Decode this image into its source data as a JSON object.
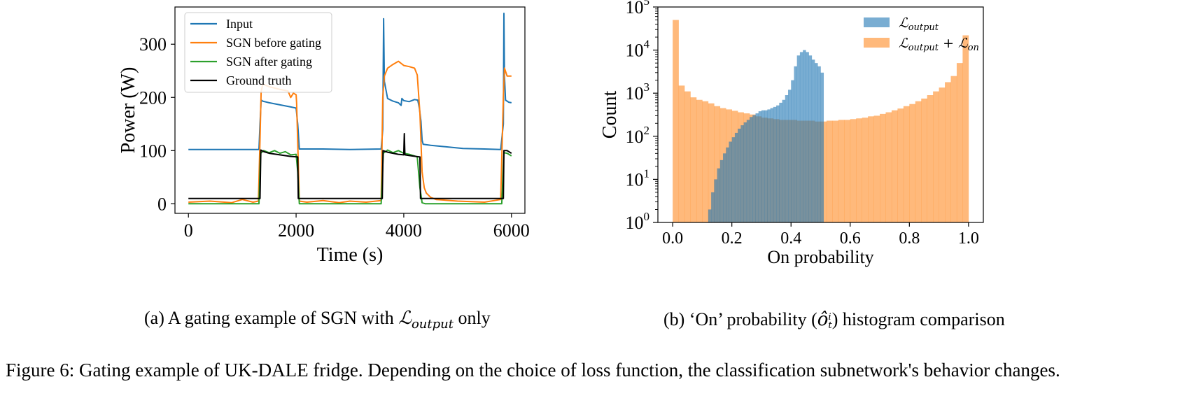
{
  "figure": {
    "caption": "Figure 6: Gating example of UK-DALE fridge. Depending on the choice of loss function, the classification subnetwork's behavior changes."
  },
  "subfigures": {
    "a": {
      "caption_prefix": "(a) A gating example of SGN with ",
      "caption_math": "ℒ",
      "caption_math_sub": "output",
      "caption_suffix": " only"
    },
    "b": {
      "caption_prefix": "(b) ‘On’ probability (",
      "caption_math": "ô",
      "caption_math_sub": "t",
      "caption_math_sup": "i",
      "caption_suffix": ") histogram comparison"
    }
  },
  "chart_data": [
    {
      "type": "line",
      "xlabel": "Time (s)",
      "ylabel": "Power (W)",
      "xlim": [
        -250,
        6250
      ],
      "ylim": [
        -18,
        370
      ],
      "xticks": [
        0,
        2000,
        4000,
        6000
      ],
      "yticks": [
        0,
        100,
        200,
        300
      ],
      "grid": false,
      "legend_position": "upper-left",
      "series": [
        {
          "name": "Input",
          "color": "#1f77b4",
          "points": [
            [
              0,
              102
            ],
            [
              1310,
              102
            ],
            [
              1330,
              150
            ],
            [
              1350,
              195
            ],
            [
              1380,
              193
            ],
            [
              1500,
              190
            ],
            [
              1700,
              186
            ],
            [
              1900,
              182
            ],
            [
              2000,
              180
            ],
            [
              2030,
              150
            ],
            [
              2060,
              103
            ],
            [
              2500,
              103
            ],
            [
              3000,
              102
            ],
            [
              3580,
              103
            ],
            [
              3610,
              140
            ],
            [
              3625,
              348
            ],
            [
              3640,
              230
            ],
            [
              3700,
              198
            ],
            [
              3800,
              193
            ],
            [
              3900,
              190
            ],
            [
              3950,
              185
            ],
            [
              3965,
              198
            ],
            [
              4000,
              194
            ],
            [
              4100,
              192
            ],
            [
              4200,
              196
            ],
            [
              4260,
              195
            ],
            [
              4290,
              180
            ],
            [
              4320,
              155
            ],
            [
              4340,
              120
            ],
            [
              4360,
              112
            ],
            [
              4500,
              110
            ],
            [
              4700,
              108
            ],
            [
              4900,
              106
            ],
            [
              5100,
              104
            ],
            [
              5500,
              103
            ],
            [
              5800,
              102
            ],
            [
              5850,
              150
            ],
            [
              5860,
              358
            ],
            [
              5870,
              240
            ],
            [
              5890,
              195
            ],
            [
              5950,
              191
            ],
            [
              6000,
              190
            ]
          ]
        },
        {
          "name": "SGN before gating",
          "color": "#ff7f0e",
          "points": [
            [
              0,
              3
            ],
            [
              400,
              5
            ],
            [
              800,
              2
            ],
            [
              1000,
              8
            ],
            [
              1200,
              3
            ],
            [
              1300,
              5
            ],
            [
              1330,
              120
            ],
            [
              1350,
              210
            ],
            [
              1380,
              225
            ],
            [
              1500,
              220
            ],
            [
              1700,
              215
            ],
            [
              1850,
              212
            ],
            [
              1900,
              200
            ],
            [
              1950,
              208
            ],
            [
              2000,
              205
            ],
            [
              2010,
              190
            ],
            [
              2060,
              5
            ],
            [
              2200,
              3
            ],
            [
              2500,
              6
            ],
            [
              2800,
              2
            ],
            [
              3000,
              5
            ],
            [
              3300,
              3
            ],
            [
              3580,
              6
            ],
            [
              3610,
              200
            ],
            [
              3640,
              240
            ],
            [
              3700,
              255
            ],
            [
              3800,
              262
            ],
            [
              3900,
              268
            ],
            [
              4000,
              260
            ],
            [
              4100,
              258
            ],
            [
              4200,
              255
            ],
            [
              4250,
              242
            ],
            [
              4300,
              170
            ],
            [
              4340,
              60
            ],
            [
              4380,
              30
            ],
            [
              4420,
              20
            ],
            [
              4500,
              12
            ],
            [
              4600,
              8
            ],
            [
              5000,
              5
            ],
            [
              5500,
              3
            ],
            [
              5800,
              8
            ],
            [
              5850,
              200
            ],
            [
              5870,
              255
            ],
            [
              5920,
              240
            ],
            [
              6000,
              240
            ]
          ]
        },
        {
          "name": "SGN after gating",
          "color": "#2ca02c",
          "points": [
            [
              0,
              0
            ],
            [
              1310,
              0
            ],
            [
              1340,
              95
            ],
            [
              1400,
              100
            ],
            [
              1500,
              96
            ],
            [
              1600,
              100
            ],
            [
              1700,
              95
            ],
            [
              1800,
              98
            ],
            [
              1900,
              92
            ],
            [
              2000,
              93
            ],
            [
              2030,
              60
            ],
            [
              2060,
              0
            ],
            [
              3580,
              0
            ],
            [
              3620,
              95
            ],
            [
              3700,
              101
            ],
            [
              3800,
              96
            ],
            [
              3900,
              100
            ],
            [
              4000,
              95
            ],
            [
              4100,
              93
            ],
            [
              4200,
              90
            ],
            [
              4250,
              88
            ],
            [
              4300,
              30
            ],
            [
              4340,
              2
            ],
            [
              4400,
              0
            ],
            [
              5820,
              0
            ],
            [
              5860,
              96
            ],
            [
              5920,
              95
            ],
            [
              6000,
              90
            ]
          ]
        },
        {
          "name": "Ground truth",
          "color": "#000000",
          "points": [
            [
              0,
              10
            ],
            [
              1330,
              10
            ],
            [
              1345,
              101
            ],
            [
              1400,
              98
            ],
            [
              1500,
              95
            ],
            [
              1700,
              92
            ],
            [
              1900,
              89
            ],
            [
              2030,
              88
            ],
            [
              2040,
              10
            ],
            [
              3600,
              10
            ],
            [
              3615,
              100
            ],
            [
              3700,
              97
            ],
            [
              3900,
              93
            ],
            [
              4000,
              92
            ],
            [
              4010,
              132
            ],
            [
              4020,
              92
            ],
            [
              4150,
              90
            ],
            [
              4300,
              88
            ],
            [
              4310,
              10
            ],
            [
              5850,
              10
            ],
            [
              5860,
              100
            ],
            [
              5920,
              100
            ],
            [
              6000,
              95
            ]
          ]
        }
      ]
    },
    {
      "type": "bar",
      "subtype": "histogram",
      "xlabel": "On probability",
      "ylabel": "Count",
      "xlim": [
        -0.05,
        1.05
      ],
      "xticks": [
        0.0,
        0.2,
        0.4,
        0.6,
        0.8,
        1.0
      ],
      "yscale": "log",
      "ylim": [
        1,
        100000
      ],
      "yticks": [
        1,
        10,
        100,
        1000,
        10000,
        100000
      ],
      "ytick_labels": [
        "10^0",
        "10^1",
        "10^2",
        "10^3",
        "10^4",
        "10^5"
      ],
      "legend_position": "upper-right",
      "series": [
        {
          "name_math": "ℒ",
          "name_sub": "output",
          "color": "#1f77b4",
          "opacity": 0.6,
          "bin_start": 0.11,
          "bin_width": 0.01,
          "values": [
            1,
            2,
            5,
            10,
            18,
            28,
            40,
            55,
            75,
            95,
            120,
            150,
            180,
            210,
            240,
            280,
            310,
            340,
            380,
            400,
            400,
            420,
            450,
            480,
            520,
            600,
            700,
            900,
            1200,
            2000,
            4200,
            7500,
            9000,
            10000,
            9000,
            7500,
            6000,
            5000,
            4200,
            3000
          ]
        },
        {
          "name_math": "ℒ",
          "name_sub": "output",
          "name_plus": " + ℒ",
          "name_sub2": "on",
          "color": "#ff7f0e",
          "opacity": 0.55,
          "bin_start": 0.0,
          "bin_width": 0.02,
          "values": [
            50000,
            1500,
            1100,
            800,
            700,
            650,
            580,
            500,
            450,
            420,
            390,
            360,
            340,
            320,
            290,
            270,
            260,
            250,
            240,
            240,
            240,
            230,
            230,
            230,
            220,
            220,
            230,
            230,
            240,
            240,
            250,
            260,
            270,
            290,
            300,
            330,
            360,
            400,
            440,
            500,
            560,
            650,
            750,
            900,
            1100,
            1350,
            1800,
            2500,
            5000,
            22000
          ]
        }
      ]
    }
  ]
}
